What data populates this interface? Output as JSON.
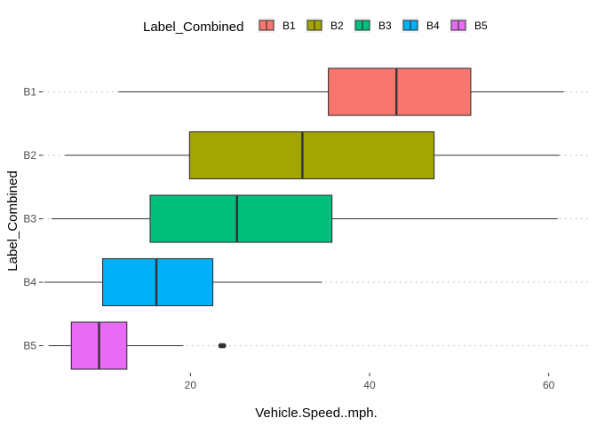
{
  "chart_data": {
    "type": "boxplot",
    "orientation": "horizontal",
    "xlabel": "Vehicle.Speed..mph.",
    "ylabel": "Label_Combined",
    "xlim": [
      3.5,
      64.5
    ],
    "xticks": [
      20,
      40,
      60
    ],
    "grid": false,
    "legend": {
      "title": "Label_Combined",
      "position": "top",
      "entries": [
        "B1",
        "B2",
        "B3",
        "B4",
        "B5"
      ]
    },
    "categories": [
      "B1",
      "B2",
      "B3",
      "B4",
      "B5"
    ],
    "series": [
      {
        "category": "B1",
        "color": "#F8766D",
        "whisker_low": 12.0,
        "q1": 35.4,
        "median": 43.0,
        "q3": 51.3,
        "whisker_high": 61.7,
        "outliers": []
      },
      {
        "category": "B2",
        "color": "#A3A500",
        "whisker_low": 6.0,
        "q1": 19.9,
        "median": 32.5,
        "q3": 47.2,
        "whisker_high": 61.2,
        "outliers": []
      },
      {
        "category": "B3",
        "color": "#00BF7D",
        "whisker_low": 4.5,
        "q1": 15.5,
        "median": 25.2,
        "q3": 35.8,
        "whisker_high": 61.0,
        "outliers": []
      },
      {
        "category": "B4",
        "color": "#00B0F6",
        "whisker_low": 3.7,
        "q1": 10.2,
        "median": 16.2,
        "q3": 22.5,
        "whisker_high": 34.7,
        "outliers": []
      },
      {
        "category": "B5",
        "color": "#E76BF3",
        "whisker_low": 4.2,
        "q1": 6.7,
        "median": 9.8,
        "q3": 12.9,
        "whisker_high": 19.2,
        "outliers": [
          23.4,
          23.7
        ]
      }
    ]
  }
}
